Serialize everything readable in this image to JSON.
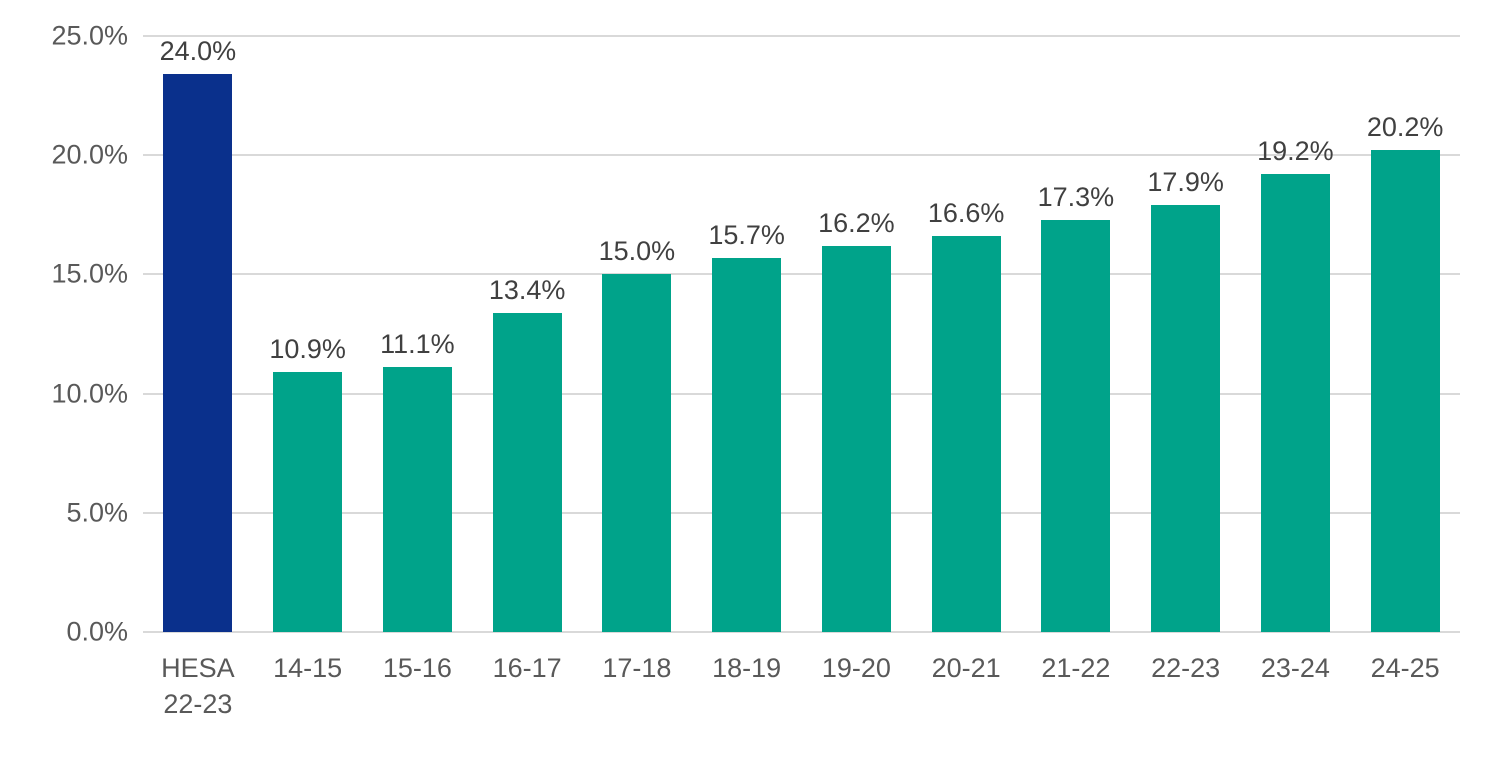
{
  "chart_data": {
    "type": "bar",
    "categories": [
      "HESA 22-23",
      "14-15",
      "15-16",
      "16-17",
      "17-18",
      "18-19",
      "19-20",
      "20-21",
      "21-22",
      "22-23",
      "23-24",
      "24-25"
    ],
    "values": [
      24.0,
      10.9,
      11.1,
      13.4,
      15.0,
      15.7,
      16.2,
      16.6,
      17.3,
      17.9,
      19.2,
      20.2
    ],
    "data_labels": [
      "24.0%",
      "10.9%",
      "11.1%",
      "13.4%",
      "15.0%",
      "15.7%",
      "16.2%",
      "16.6%",
      "17.3%",
      "17.9%",
      "19.2%",
      "20.2%"
    ],
    "title": "",
    "xlabel": "",
    "ylabel": "",
    "ylim": [
      0,
      25
    ],
    "ytick_values": [
      0,
      5,
      10,
      15,
      20,
      25
    ],
    "ytick_labels": [
      "0.0%",
      "5.0%",
      "10.0%",
      "15.0%",
      "20.0%",
      "25.0%"
    ],
    "grid": "horizontal",
    "legend": "none",
    "highlight_index": 0,
    "colors": {
      "bar_highlight": "#0a308c",
      "bar_default": "#00a38a",
      "gridline": "#d9d9d9",
      "axis_text": "#595959",
      "data_label_text": "#404040",
      "background": "#ffffff"
    }
  }
}
